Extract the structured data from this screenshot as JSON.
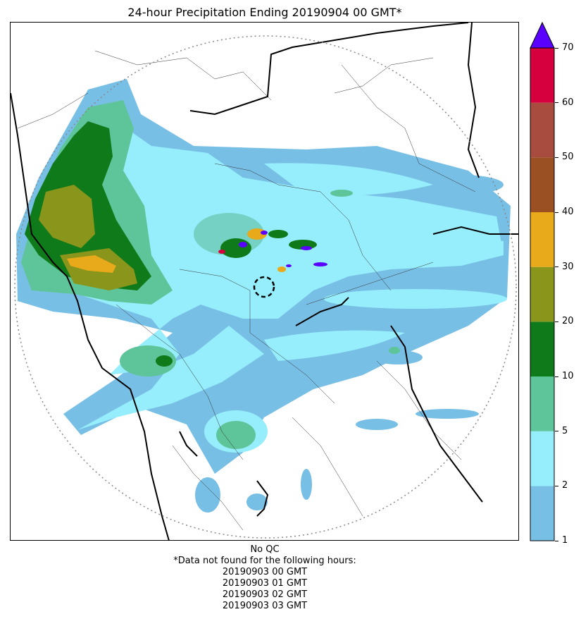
{
  "title": "24-hour Precipitation Ending 20190904 00 GMT*",
  "colorbar": {
    "labels": [
      "1",
      "2",
      "5",
      "10",
      "20",
      "30",
      "40",
      "50",
      "60",
      "70"
    ],
    "colors": [
      "#78bfe6",
      "#96eefc",
      "#5ec499",
      "#0f7a1a",
      "#8a951b",
      "#e8a91a",
      "#9b5023",
      "#a74c3f",
      "#d6003f"
    ],
    "extend_color": "#5a00ff"
  },
  "footer": {
    "qc": "No QC",
    "note": "*Data not found for the following hours:",
    "missing_hours": [
      "20190903 00 GMT",
      "20190903 01 GMT",
      "20190903 02 GMT",
      "20190903 03 GMT"
    ]
  }
}
